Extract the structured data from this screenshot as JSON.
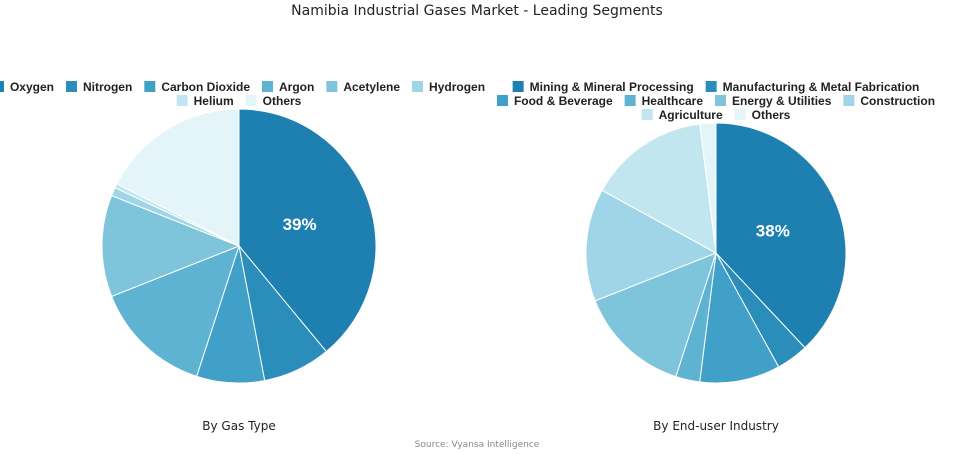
{
  "title": "Namibia Industrial Gases Market - Leading Segments",
  "source": "Source: Vyansa Intelligence",
  "chart_data": [
    {
      "type": "pie",
      "caption": "By Gas Type",
      "labels": [
        "Oxygen",
        "Nitrogen",
        "Carbon Dioxide",
        "Argon",
        "Acetylene",
        "Hydrogen",
        "Helium",
        "Others"
      ],
      "values": [
        39,
        8,
        8,
        14,
        12,
        1,
        0.5,
        17.5
      ],
      "colors": [
        "#1e80b0",
        "#2b8dba",
        "#40a0c8",
        "#5eb2d2",
        "#7ec5dc",
        "#9fd5e6",
        "#c2e6f0",
        "#e4f5fa"
      ],
      "data_labels": [
        "39%"
      ],
      "legend_position": "top"
    },
    {
      "type": "pie",
      "caption": "By End-user Industry",
      "labels": [
        "Mining & Mineral Processing",
        "Manufacturing & Metal Fabrication",
        "Food & Beverage",
        "Healthcare",
        "Energy & Utilities",
        "Construction",
        "Agriculture",
        "Others"
      ],
      "values": [
        38,
        4,
        10,
        3,
        14,
        14,
        15,
        2
      ],
      "colors": [
        "#1e80b0",
        "#2b8dba",
        "#40a0c8",
        "#5eb2d2",
        "#7ec5dc",
        "#9fd5e6",
        "#c2e6f0",
        "#e4f5fa"
      ],
      "data_labels": [
        "38%"
      ],
      "legend_position": "top"
    }
  ]
}
